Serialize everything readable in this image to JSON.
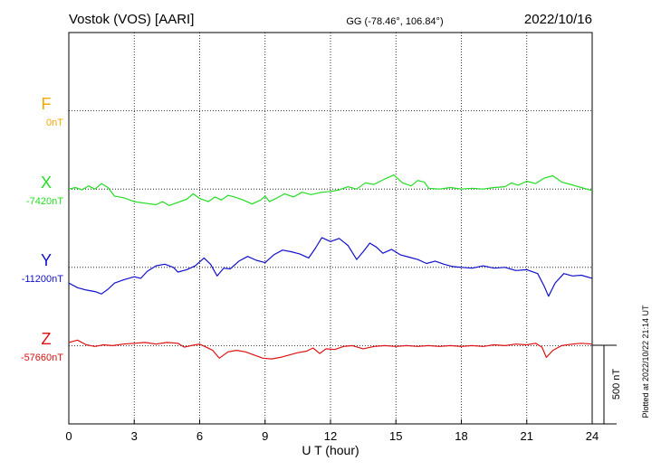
{
  "header": {
    "station": "Vostok (VOS)  [AARI]",
    "coords": "GG (-78.46°, 106.84°)",
    "date": "2022/10/16"
  },
  "footer_note": "Plotted at 2022/10/22 21:14 UT",
  "scale_label": "500 nT",
  "colors": {
    "F": "#f5a800",
    "X": "#22dd22",
    "Y": "#1010cc",
    "Z": "#dd1111",
    "axis": "#000000"
  },
  "chart_data": {
    "type": "line",
    "xlabel": "U T (hour)",
    "xlim": [
      0,
      24
    ],
    "xticks": [
      0,
      3,
      6,
      9,
      12,
      15,
      18,
      21,
      24
    ],
    "y_scale_nT_per_division": 500,
    "grid": true,
    "series": [
      {
        "name": "F",
        "baseline_label": "0nT",
        "color": "#f5a800",
        "baseline_nT": 0,
        "points": []
      },
      {
        "name": "X",
        "baseline_label": "-7420nT",
        "color": "#22dd22",
        "baseline_nT": -7420,
        "points": [
          [
            0,
            -7420
          ],
          [
            0.3,
            -7410
          ],
          [
            0.6,
            -7425
          ],
          [
            0.9,
            -7400
          ],
          [
            1.2,
            -7420
          ],
          [
            1.5,
            -7385
          ],
          [
            1.8,
            -7410
          ],
          [
            2.1,
            -7465
          ],
          [
            2.5,
            -7475
          ],
          [
            3.0,
            -7500
          ],
          [
            3.5,
            -7510
          ],
          [
            4.0,
            -7520
          ],
          [
            4.3,
            -7500
          ],
          [
            4.6,
            -7525
          ],
          [
            5.0,
            -7505
          ],
          [
            5.4,
            -7485
          ],
          [
            5.7,
            -7450
          ],
          [
            6.0,
            -7480
          ],
          [
            6.4,
            -7500
          ],
          [
            6.7,
            -7470
          ],
          [
            7.0,
            -7490
          ],
          [
            7.3,
            -7460
          ],
          [
            7.6,
            -7470
          ],
          [
            8.0,
            -7490
          ],
          [
            8.4,
            -7515
          ],
          [
            8.8,
            -7490
          ],
          [
            9.0,
            -7465
          ],
          [
            9.2,
            -7500
          ],
          [
            9.5,
            -7480
          ],
          [
            9.9,
            -7450
          ],
          [
            10.3,
            -7470
          ],
          [
            10.7,
            -7440
          ],
          [
            11.1,
            -7455
          ],
          [
            11.6,
            -7440
          ],
          [
            12.0,
            -7435
          ],
          [
            12.4,
            -7425
          ],
          [
            12.8,
            -7405
          ],
          [
            13.2,
            -7420
          ],
          [
            13.6,
            -7380
          ],
          [
            14.0,
            -7390
          ],
          [
            14.5,
            -7355
          ],
          [
            14.9,
            -7330
          ],
          [
            15.3,
            -7380
          ],
          [
            15.7,
            -7400
          ],
          [
            16.0,
            -7365
          ],
          [
            16.3,
            -7375
          ],
          [
            16.5,
            -7415
          ],
          [
            17.0,
            -7420
          ],
          [
            17.5,
            -7410
          ],
          [
            18.0,
            -7420
          ],
          [
            18.5,
            -7415
          ],
          [
            19.0,
            -7420
          ],
          [
            19.5,
            -7410
          ],
          [
            20.0,
            -7405
          ],
          [
            20.3,
            -7380
          ],
          [
            20.6,
            -7395
          ],
          [
            21.0,
            -7370
          ],
          [
            21.4,
            -7385
          ],
          [
            21.8,
            -7350
          ],
          [
            22.2,
            -7335
          ],
          [
            22.6,
            -7375
          ],
          [
            23.0,
            -7390
          ],
          [
            23.5,
            -7410
          ],
          [
            24.0,
            -7430
          ]
        ]
      },
      {
        "name": "Y",
        "baseline_label": "-11200nT",
        "color": "#1010cc",
        "baseline_nT": -11200,
        "points": [
          [
            0,
            -11300
          ],
          [
            0.4,
            -11330
          ],
          [
            0.8,
            -11345
          ],
          [
            1.2,
            -11355
          ],
          [
            1.5,
            -11370
          ],
          [
            1.8,
            -11340
          ],
          [
            2.1,
            -11300
          ],
          [
            2.5,
            -11280
          ],
          [
            3.0,
            -11260
          ],
          [
            3.3,
            -11270
          ],
          [
            3.6,
            -11225
          ],
          [
            4.0,
            -11190
          ],
          [
            4.4,
            -11180
          ],
          [
            4.8,
            -11200
          ],
          [
            5.0,
            -11230
          ],
          [
            5.4,
            -11215
          ],
          [
            5.8,
            -11190
          ],
          [
            6.2,
            -11140
          ],
          [
            6.5,
            -11180
          ],
          [
            6.8,
            -11255
          ],
          [
            7.1,
            -11205
          ],
          [
            7.4,
            -11210
          ],
          [
            7.8,
            -11160
          ],
          [
            8.2,
            -11130
          ],
          [
            8.6,
            -11155
          ],
          [
            9.0,
            -11170
          ],
          [
            9.4,
            -11120
          ],
          [
            9.8,
            -11090
          ],
          [
            10.2,
            -11100
          ],
          [
            10.6,
            -11115
          ],
          [
            11.0,
            -11140
          ],
          [
            11.3,
            -11080
          ],
          [
            11.6,
            -11010
          ],
          [
            12.0,
            -11035
          ],
          [
            12.4,
            -11015
          ],
          [
            12.8,
            -11060
          ],
          [
            13.2,
            -11150
          ],
          [
            13.5,
            -11100
          ],
          [
            13.8,
            -11045
          ],
          [
            14.1,
            -11070
          ],
          [
            14.4,
            -11110
          ],
          [
            14.8,
            -11085
          ],
          [
            15.2,
            -11120
          ],
          [
            15.6,
            -11135
          ],
          [
            16.0,
            -11150
          ],
          [
            16.4,
            -11175
          ],
          [
            16.8,
            -11160
          ],
          [
            17.2,
            -11180
          ],
          [
            17.6,
            -11195
          ],
          [
            18.0,
            -11200
          ],
          [
            18.5,
            -11205
          ],
          [
            19.0,
            -11190
          ],
          [
            19.5,
            -11205
          ],
          [
            20.0,
            -11200
          ],
          [
            20.5,
            -11220
          ],
          [
            21.0,
            -11215
          ],
          [
            21.5,
            -11240
          ],
          [
            21.8,
            -11320
          ],
          [
            22.0,
            -11385
          ],
          [
            22.3,
            -11300
          ],
          [
            22.7,
            -11240
          ],
          [
            23.1,
            -11255
          ],
          [
            23.5,
            -11250
          ],
          [
            24.0,
            -11270
          ]
        ]
      },
      {
        "name": "Z",
        "baseline_label": "-57660nT",
        "color": "#dd1111",
        "baseline_nT": -57660,
        "points": [
          [
            0,
            -57640
          ],
          [
            0.4,
            -57625
          ],
          [
            0.8,
            -57655
          ],
          [
            1.2,
            -57665
          ],
          [
            1.6,
            -57655
          ],
          [
            2.0,
            -57660
          ],
          [
            2.5,
            -57650
          ],
          [
            3.0,
            -57645
          ],
          [
            3.5,
            -57640
          ],
          [
            4.0,
            -57650
          ],
          [
            4.5,
            -57640
          ],
          [
            5.0,
            -57645
          ],
          [
            5.3,
            -57670
          ],
          [
            5.6,
            -57660
          ],
          [
            6.0,
            -57650
          ],
          [
            6.3,
            -57670
          ],
          [
            6.6,
            -57690
          ],
          [
            6.9,
            -57740
          ],
          [
            7.3,
            -57700
          ],
          [
            7.7,
            -57690
          ],
          [
            8.1,
            -57700
          ],
          [
            8.5,
            -57720
          ],
          [
            8.9,
            -57740
          ],
          [
            9.3,
            -57745
          ],
          [
            9.7,
            -57735
          ],
          [
            10.1,
            -57720
          ],
          [
            10.5,
            -57705
          ],
          [
            10.9,
            -57695
          ],
          [
            11.2,
            -57675
          ],
          [
            11.5,
            -57710
          ],
          [
            11.8,
            -57680
          ],
          [
            12.2,
            -57685
          ],
          [
            12.6,
            -57665
          ],
          [
            13.0,
            -57660
          ],
          [
            13.5,
            -57680
          ],
          [
            14.0,
            -57665
          ],
          [
            14.5,
            -57660
          ],
          [
            15.0,
            -57665
          ],
          [
            15.5,
            -57660
          ],
          [
            16.0,
            -57665
          ],
          [
            16.5,
            -57660
          ],
          [
            17.0,
            -57665
          ],
          [
            17.5,
            -57660
          ],
          [
            18.0,
            -57665
          ],
          [
            18.5,
            -57660
          ],
          [
            19.0,
            -57665
          ],
          [
            19.5,
            -57655
          ],
          [
            20.0,
            -57660
          ],
          [
            20.5,
            -57650
          ],
          [
            21.0,
            -57655
          ],
          [
            21.4,
            -57645
          ],
          [
            21.7,
            -57670
          ],
          [
            21.9,
            -57735
          ],
          [
            22.2,
            -57690
          ],
          [
            22.6,
            -57660
          ],
          [
            23.1,
            -57650
          ],
          [
            23.5,
            -57645
          ],
          [
            24.0,
            -57650
          ]
        ]
      }
    ]
  }
}
